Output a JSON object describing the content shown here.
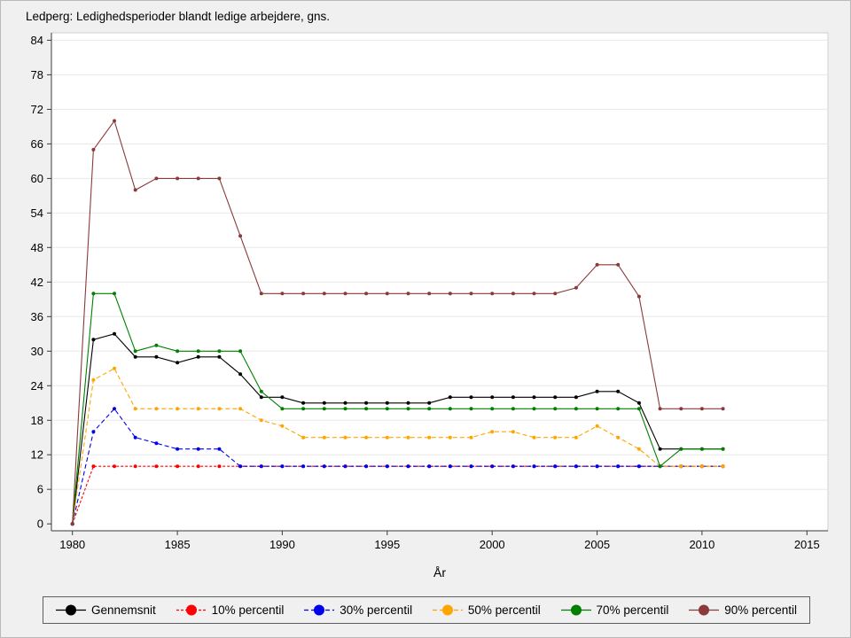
{
  "chart_data": {
    "type": "line",
    "title": "Ledperg: Ledighedsperioder blandt ledige arbejdere, gns.",
    "xlabel": "År",
    "ylabel": "",
    "x": [
      1980,
      1981,
      1982,
      1983,
      1984,
      1985,
      1986,
      1987,
      1988,
      1989,
      1990,
      1991,
      1992,
      1993,
      1994,
      1995,
      1996,
      1997,
      1998,
      1999,
      2000,
      2001,
      2002,
      2003,
      2004,
      2005,
      2006,
      2007,
      2008,
      2009,
      2010,
      2011
    ],
    "series": [
      {
        "name": "Gennemsnit",
        "color": "#000000",
        "dash": "",
        "values": [
          0,
          32,
          33,
          29,
          29,
          28,
          29,
          29,
          26,
          22,
          22,
          21,
          21,
          21,
          21,
          21,
          21,
          21,
          22,
          22,
          22,
          22,
          22,
          22,
          22,
          23,
          23,
          21,
          13,
          13,
          13,
          13
        ]
      },
      {
        "name": "10% percentil",
        "color": "#ff0000",
        "dash": "3,2",
        "values": [
          0,
          10,
          10,
          10,
          10,
          10,
          10,
          10,
          10,
          10,
          10,
          10,
          10,
          10,
          10,
          10,
          10,
          10,
          10,
          10,
          10,
          10,
          10,
          10,
          10,
          10,
          10,
          10,
          10,
          10,
          10,
          10
        ]
      },
      {
        "name": "30% percentil",
        "color": "#0000ee",
        "dash": "5,3",
        "values": [
          0,
          16,
          20,
          15,
          14,
          13,
          13,
          13,
          10,
          10,
          10,
          10,
          10,
          10,
          10,
          10,
          10,
          10,
          10,
          10,
          10,
          10,
          10,
          10,
          10,
          10,
          10,
          10,
          10,
          10,
          10,
          10
        ]
      },
      {
        "name": "50% percentil",
        "color": "#ffa500",
        "dash": "5,3",
        "values": [
          0,
          25,
          27,
          20,
          20,
          20,
          20,
          20,
          20,
          18,
          17,
          15,
          15,
          15,
          15,
          15,
          15,
          15,
          15,
          15,
          16,
          16,
          15,
          15,
          15,
          17,
          15,
          13,
          10,
          10,
          10,
          10
        ]
      },
      {
        "name": "70% percentil",
        "color": "#008000",
        "dash": "",
        "values": [
          0,
          40,
          40,
          30,
          31,
          30,
          30,
          30,
          30,
          23,
          20,
          20,
          20,
          20,
          20,
          20,
          20,
          20,
          20,
          20,
          20,
          20,
          20,
          20,
          20,
          20,
          20,
          20,
          10,
          13,
          13,
          13
        ]
      },
      {
        "name": "90% percentil",
        "color": "#8b3a3a",
        "dash": "",
        "values": [
          0,
          65,
          70,
          58,
          60,
          60,
          60,
          60,
          50,
          40,
          40,
          40,
          40,
          40,
          40,
          40,
          40,
          40,
          40,
          40,
          40,
          40,
          40,
          40,
          41,
          45,
          45,
          39.5,
          20,
          20,
          20,
          20
        ]
      }
    ],
    "xticks": [
      1980,
      1985,
      1990,
      1995,
      2000,
      2005,
      2010,
      2015
    ],
    "yticks": [
      0,
      6,
      12,
      18,
      24,
      30,
      36,
      42,
      48,
      54,
      60,
      66,
      72,
      78,
      84
    ],
    "xlim": [
      1979,
      2016
    ],
    "ylim": [
      -1.2,
      85.3
    ],
    "grid": true,
    "legend_position": "bottom",
    "plot_bg": "#ffffff",
    "axis_color": "#3a3a3a",
    "grid_color": "#e8e8e8"
  }
}
